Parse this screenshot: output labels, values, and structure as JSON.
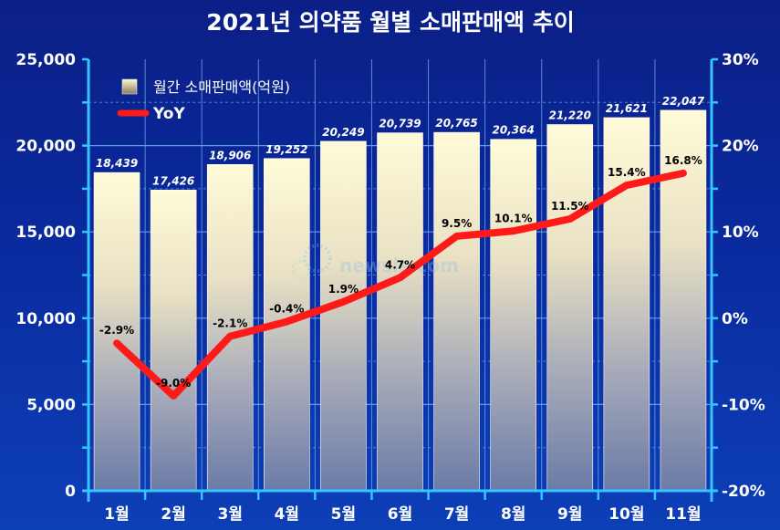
{
  "chart_data": {
    "type": "bar",
    "title": "2021년 의약품 월별 소매판매액 추이",
    "categories": [
      "1월",
      "2월",
      "3월",
      "4월",
      "5월",
      "6월",
      "7월",
      "8월",
      "9월",
      "10월",
      "11월"
    ],
    "series": [
      {
        "name": "월간 소매판매액(억원)",
        "type": "bar",
        "axis": "left",
        "values": [
          18439,
          17426,
          18906,
          19252,
          20249,
          20739,
          20765,
          20364,
          21220,
          21621,
          22047
        ],
        "labels": [
          "18,439",
          "17,426",
          "18,906",
          "19,252",
          "20,249",
          "20,739",
          "20,765",
          "20,364",
          "21,220",
          "21,621",
          "22,047"
        ]
      },
      {
        "name": "YoY",
        "type": "line",
        "axis": "right",
        "color": "#ff1a1a",
        "values": [
          -2.9,
          -9.0,
          -2.1,
          -0.4,
          1.9,
          4.7,
          9.5,
          10.1,
          11.5,
          15.4,
          16.8
        ],
        "labels": [
          "-2.9%",
          "-9.0%",
          "-2.1%",
          "-0.4%",
          "1.9%",
          "4.7%",
          "9.5%",
          "10.1%",
          "11.5%",
          "15.4%",
          "16.8%"
        ]
      }
    ],
    "y_left": {
      "range": [
        0,
        25000
      ],
      "ticks": [
        "0",
        "5,000",
        "10,000",
        "15,000",
        "20,000",
        "25,000"
      ]
    },
    "y_right": {
      "range": [
        -20,
        30
      ],
      "ticks": [
        "-20%",
        "-10%",
        "0%",
        "10%",
        "20%",
        "30%"
      ]
    },
    "grid": true,
    "legend_position": "top-left",
    "colors": {
      "background": "#0b2595",
      "axis": "#33c6ff",
      "grid": "#6aa7e8",
      "line": "#ff1a1a",
      "bar_top": "#fffbd6",
      "bar_bottom": "#6e7fa8"
    }
  },
  "watermark": "newsis.com"
}
